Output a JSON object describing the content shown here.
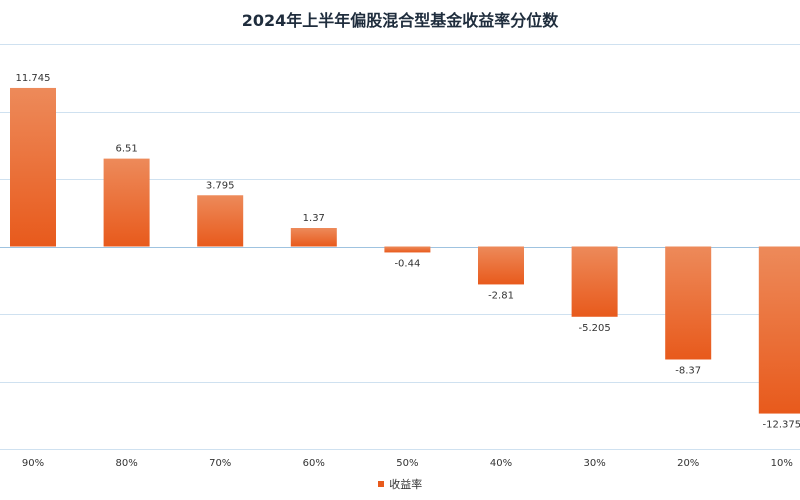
{
  "chart_data": {
    "type": "bar",
    "title": "2024年上半年偏股混合型基金收益率分位数",
    "categories": [
      "90%",
      "80%",
      "70%",
      "60%",
      "50%",
      "40%",
      "30%",
      "20%",
      "10%"
    ],
    "series": [
      {
        "name": "收益率",
        "values": [
          11.745,
          6.51,
          3.795,
          1.37,
          -0.44,
          -2.81,
          -5.205,
          -8.37,
          -12.375
        ],
        "color_top": "#ed8a5a",
        "color_bottom": "#e85a1c"
      }
    ],
    "value_labels": [
      "11.745",
      "6.51",
      "3.795",
      "1.37",
      "-0.44",
      "-2.81",
      "-5.205",
      "-8.37",
      "-12.375"
    ],
    "ylim": [
      -15,
      15
    ],
    "grid": true,
    "legend_position": "bottom-center",
    "xlabel": "",
    "ylabel": ""
  }
}
